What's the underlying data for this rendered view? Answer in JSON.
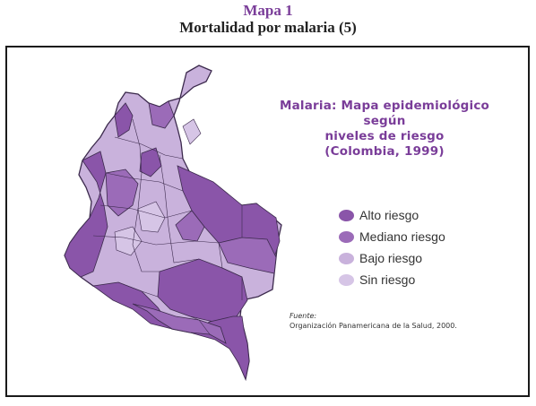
{
  "header": {
    "label": "Mapa 1",
    "title": "Mortalidad por malaria (5)"
  },
  "map": {
    "title_lines": [
      "Malaria: Mapa epidemiológico",
      "según",
      "niveles de riesgo",
      "(Colombia, 1999)"
    ],
    "legend": [
      {
        "label": "Alto riesgo",
        "color": "#8a55a9"
      },
      {
        "label": "Mediano riesgo",
        "color": "#9b6bb8"
      },
      {
        "label": "Bajo riesgo",
        "color": "#c9b2dc"
      },
      {
        "label": "Sin riesgo",
        "color": "#d6c5e6"
      }
    ],
    "source_label": "Fuente:",
    "source_text": "Organización Panamericana de la Salud, 2000."
  },
  "colors": {
    "accent": "#7a3d99",
    "high": "#8a55a9",
    "medium": "#9b6bb8",
    "low": "#c9b2dc",
    "none": "#d6c5e6",
    "border": "#3c2a4d"
  }
}
